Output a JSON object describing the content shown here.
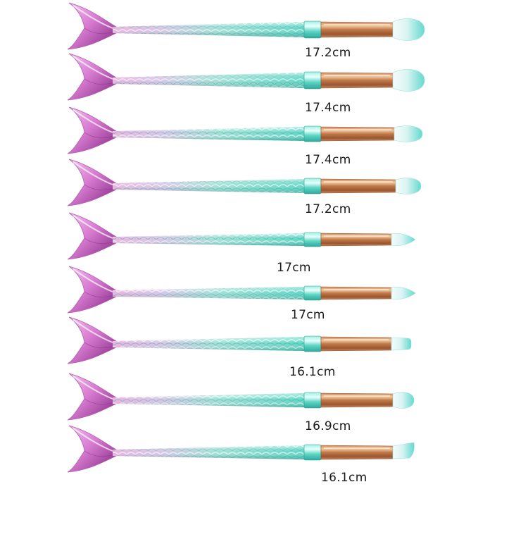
{
  "brushes": [
    {
      "length": "17.2cm",
      "tip": "wide"
    },
    {
      "length": "17.4cm",
      "tip": "fan"
    },
    {
      "length": "17.4cm",
      "tip": "round"
    },
    {
      "length": "17.2cm",
      "tip": "dome"
    },
    {
      "length": "17cm",
      "tip": "pointed"
    },
    {
      "length": "17cm",
      "tip": "pointed"
    },
    {
      "length": "16.1cm",
      "tip": "flat"
    },
    {
      "length": "16.9cm",
      "tip": "round"
    },
    {
      "length": "16.1cm",
      "tip": "angled"
    }
  ],
  "colors": {
    "tail_light": "#f3c2ee",
    "tail_mid": "#d77ad0",
    "tail_dark": "#a0459e",
    "handle_pink": "#e8b4e0",
    "handle_teal": "#5fd6c6",
    "handle_teal_dark": "#2fa99b",
    "ferrule_light": "#f2c8a0",
    "ferrule_mid": "#d08a5a",
    "ferrule_dark": "#9a5530",
    "bristle_white": "#f4fbfb",
    "bristle_teal": "#63d9cf"
  }
}
